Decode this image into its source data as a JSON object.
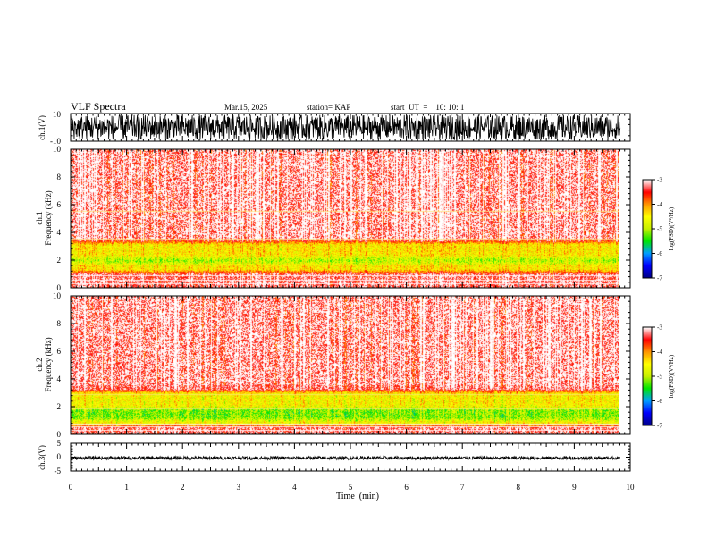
{
  "header": {
    "title": "VLF Spectra",
    "date": "Mar.15, 2025",
    "station": "station= KAP",
    "start_ut": "start  UT  =    10: 10: 1"
  },
  "chart_data": {
    "type": "heatmap",
    "x": {
      "label": "Time  (min)",
      "range": [
        0,
        10
      ],
      "ticks": [
        "0",
        "1",
        "2",
        "3",
        "4",
        "5",
        "6",
        "7",
        "8",
        "9",
        "10"
      ],
      "data_end_min": 9.82
    },
    "panels": [
      {
        "id": "ch1-waveform",
        "kind": "waveform",
        "ylabel": "ch.1(V)",
        "ylim": [
          -10,
          10
        ],
        "yticks": [
          "10",
          "-10"
        ],
        "amplitude_range": [
          -9,
          9
        ]
      },
      {
        "id": "ch1-spectrogram",
        "kind": "spectrogram",
        "ylabel": "ch.1\nFrequency  (kHz)",
        "ylim": [
          0,
          10
        ],
        "yticks": [
          "0",
          "2",
          "4",
          "6",
          "8",
          "10"
        ],
        "background_level": -3.3,
        "bands": [
          {
            "from_khz": 1.0,
            "to_khz": 3.5,
            "level": -4.5
          },
          {
            "from_khz": 1.6,
            "to_khz": 2.4,
            "level": -5.0
          }
        ],
        "lines_khz": [
          0.3,
          0.55,
          0.9,
          3.55,
          5.55
        ]
      },
      {
        "id": "ch2-spectrogram",
        "kind": "spectrogram",
        "ylabel": "ch.2\nFrequency  (kHz)",
        "ylim": [
          0,
          10
        ],
        "yticks": [
          "0",
          "2",
          "4",
          "6",
          "8",
          "10"
        ],
        "background_level": -3.3,
        "bands": [
          {
            "from_khz": 0.5,
            "to_khz": 3.3,
            "level": -4.6
          },
          {
            "from_khz": 0.9,
            "to_khz": 2.1,
            "level": -5.2
          }
        ],
        "lines_khz": [
          0.3,
          0.55,
          0.75,
          1.85,
          2.9
        ]
      },
      {
        "id": "ch3-waveform",
        "kind": "waveform",
        "ylabel": "ch.3(V)",
        "ylim": [
          -5,
          5
        ],
        "yticks": [
          "5",
          "0",
          "-5"
        ],
        "amplitude_range": [
          -0.9,
          0.3
        ]
      }
    ],
    "colorbar": {
      "label": "log(PSD)(V²/Hz)",
      "range": [
        -7,
        -3
      ],
      "ticks": [
        "-3",
        "-4",
        "-5",
        "-6",
        "-7"
      ],
      "colors": [
        "#00008c",
        "#0000ff",
        "#00a0ff",
        "#00e600",
        "#c8f000",
        "#ffff00",
        "#ff9600",
        "#ff0000",
        "#ffffff"
      ]
    }
  }
}
